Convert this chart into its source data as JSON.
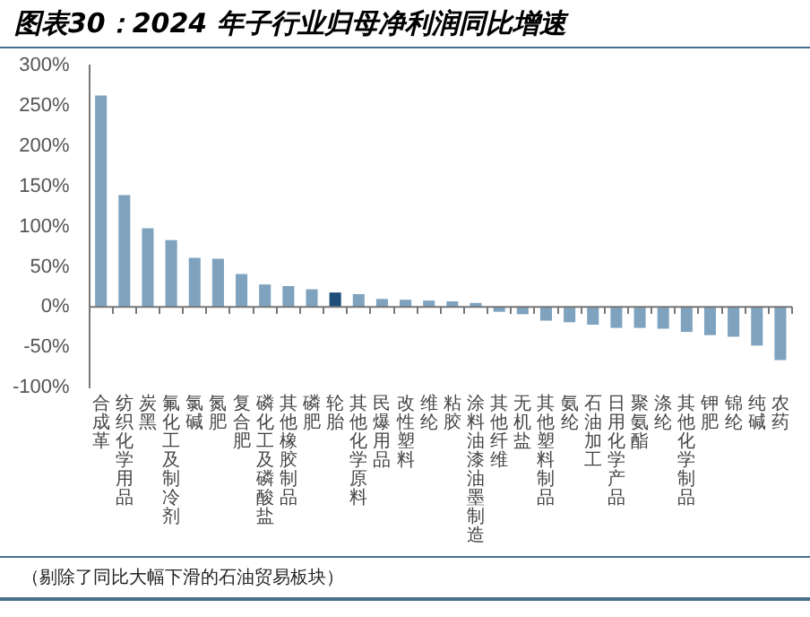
{
  "chart_data": {
    "type": "bar",
    "title": "图表30：2024 年子行业归母净利润同比增速",
    "categories": [
      "合成革",
      "纺织化学用品",
      "炭黑",
      "氟化工及制冷剂",
      "氯碱",
      "氮肥",
      "复合肥",
      "磷化工及磷酸盐",
      "其他橡胶制品",
      "磷肥",
      "轮胎",
      "其他化学原料",
      "民爆用品",
      "改性塑料",
      "维纶",
      "粘胶",
      "涂料油漆油墨制造",
      "其他纤维",
      "无机盐",
      "其他塑料制品",
      "氨纶",
      "石油加工",
      "日用化学产品",
      "聚氨酯",
      "涤纶",
      "其他化学制品",
      "钾肥",
      "锦纶",
      "纯碱",
      "农药"
    ],
    "values": [
      263,
      139,
      98,
      83,
      61,
      60,
      41,
      28,
      26,
      22,
      18,
      16,
      10,
      9,
      8,
      7,
      5,
      -6,
      -9,
      -17,
      -19,
      -22,
      -26,
      -26,
      -27,
      -31,
      -35,
      -37,
      -48,
      -66
    ],
    "colors": [
      "#7fa3bf",
      "#7fa3bf",
      "#7fa3bf",
      "#7fa3bf",
      "#7fa3bf",
      "#7fa3bf",
      "#7fa3bf",
      "#7fa3bf",
      "#7fa3bf",
      "#7fa3bf",
      "#1f4e79",
      "#7fa3bf",
      "#7fa3bf",
      "#7fa3bf",
      "#7fa3bf",
      "#7fa3bf",
      "#7fa3bf",
      "#7fa3bf",
      "#7fa3bf",
      "#7fa3bf",
      "#7fa3bf",
      "#7fa3bf",
      "#7fa3bf",
      "#7fa3bf",
      "#7fa3bf",
      "#7fa3bf",
      "#7fa3bf",
      "#7fa3bf",
      "#7fa3bf",
      "#7fa3bf"
    ],
    "ylim": [
      -100,
      300
    ],
    "yticks": [
      {
        "value": -100,
        "label": "-100%"
      },
      {
        "value": -50,
        "label": "-50%"
      },
      {
        "value": 0,
        "label": "0%"
      },
      {
        "value": 50,
        "label": "50%"
      },
      {
        "value": 100,
        "label": "100%"
      },
      {
        "value": 150,
        "label": "150%"
      },
      {
        "value": 200,
        "label": "200%"
      },
      {
        "value": 250,
        "label": "250%"
      },
      {
        "value": 300,
        "label": "300%"
      }
    ],
    "grid": false,
    "legend": false,
    "ref_lines": [
      {
        "axis": "y",
        "value": 0,
        "color": "#777777"
      }
    ],
    "annotations": [
      "（剔除了同比大幅下滑的石油贸易板块）"
    ]
  }
}
